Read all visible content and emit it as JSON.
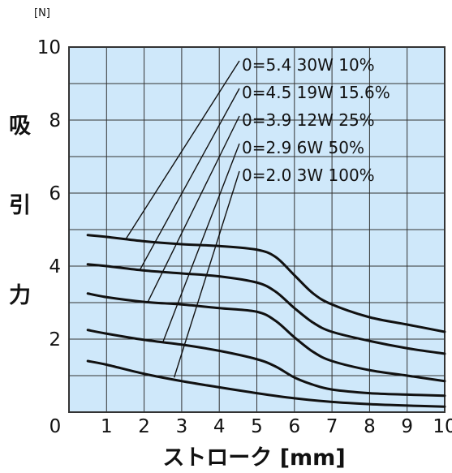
{
  "chart_data": {
    "type": "line",
    "title": "",
    "y_unit": "[N]",
    "y_title_chars": [
      "吸",
      "引",
      "力"
    ],
    "x_title": "ストローク [mm]",
    "xlim": [
      0,
      10
    ],
    "ylim": [
      0,
      10
    ],
    "x_ticks": [
      0,
      1,
      2,
      3,
      4,
      5,
      6,
      7,
      8,
      9,
      10
    ],
    "x_tick_labels": [
      "0",
      "1",
      "2",
      "3",
      "4",
      "5",
      "6",
      "7",
      "8",
      "9",
      "10"
    ],
    "y_ticks": [
      2,
      4,
      6,
      8,
      10
    ],
    "y_tick_labels": [
      "2",
      "4",
      "6",
      "8",
      "10"
    ],
    "grid": true,
    "colors": {
      "plot_bg": "#cfe8fa",
      "grid": "#333333",
      "line": "#111111"
    },
    "series": [
      {
        "name": "0=5.4 30W 10%",
        "points": [
          [
            0.5,
            4.85
          ],
          [
            1,
            4.8
          ],
          [
            2,
            4.68
          ],
          [
            3,
            4.6
          ],
          [
            4,
            4.55
          ],
          [
            5,
            4.45
          ],
          [
            5.5,
            4.25
          ],
          [
            6,
            3.75
          ],
          [
            6.5,
            3.25
          ],
          [
            7,
            2.95
          ],
          [
            8,
            2.6
          ],
          [
            9,
            2.4
          ],
          [
            10,
            2.2
          ]
        ],
        "pointer_at": [
          1.5,
          4.72
        ]
      },
      {
        "name": "0=4.5 19W 15.6%",
        "points": [
          [
            0.5,
            4.05
          ],
          [
            1,
            4.0
          ],
          [
            2,
            3.88
          ],
          [
            3,
            3.8
          ],
          [
            4,
            3.72
          ],
          [
            5,
            3.55
          ],
          [
            5.5,
            3.3
          ],
          [
            6,
            2.85
          ],
          [
            6.5,
            2.45
          ],
          [
            7,
            2.2
          ],
          [
            8,
            1.95
          ],
          [
            9,
            1.75
          ],
          [
            10,
            1.6
          ]
        ],
        "pointer_at": [
          1.9,
          3.92
        ]
      },
      {
        "name": "0=3.9 12W 25%",
        "points": [
          [
            0.5,
            3.25
          ],
          [
            1,
            3.15
          ],
          [
            2,
            3.02
          ],
          [
            3,
            2.95
          ],
          [
            4,
            2.85
          ],
          [
            5,
            2.75
          ],
          [
            5.5,
            2.5
          ],
          [
            6,
            2.05
          ],
          [
            6.5,
            1.65
          ],
          [
            7,
            1.4
          ],
          [
            8,
            1.15
          ],
          [
            9,
            1.0
          ],
          [
            10,
            0.85
          ]
        ],
        "pointer_at": [
          2.1,
          3.02
        ]
      },
      {
        "name": "0=2.9 6W 50%",
        "points": [
          [
            0.5,
            2.25
          ],
          [
            1,
            2.15
          ],
          [
            2,
            1.98
          ],
          [
            3,
            1.85
          ],
          [
            4,
            1.68
          ],
          [
            5,
            1.45
          ],
          [
            5.5,
            1.25
          ],
          [
            6,
            0.95
          ],
          [
            6.5,
            0.75
          ],
          [
            7,
            0.62
          ],
          [
            8,
            0.52
          ],
          [
            9,
            0.48
          ],
          [
            10,
            0.45
          ]
        ],
        "pointer_at": [
          2.5,
          1.92
        ]
      },
      {
        "name": "0=2.0 3W 100%",
        "points": [
          [
            0.5,
            1.4
          ],
          [
            1,
            1.3
          ],
          [
            2,
            1.05
          ],
          [
            3,
            0.85
          ],
          [
            4,
            0.68
          ],
          [
            5,
            0.52
          ],
          [
            6,
            0.38
          ],
          [
            7,
            0.28
          ],
          [
            8,
            0.22
          ],
          [
            9,
            0.18
          ],
          [
            10,
            0.15
          ]
        ],
        "pointer_at": [
          2.8,
          0.95
        ]
      }
    ]
  }
}
